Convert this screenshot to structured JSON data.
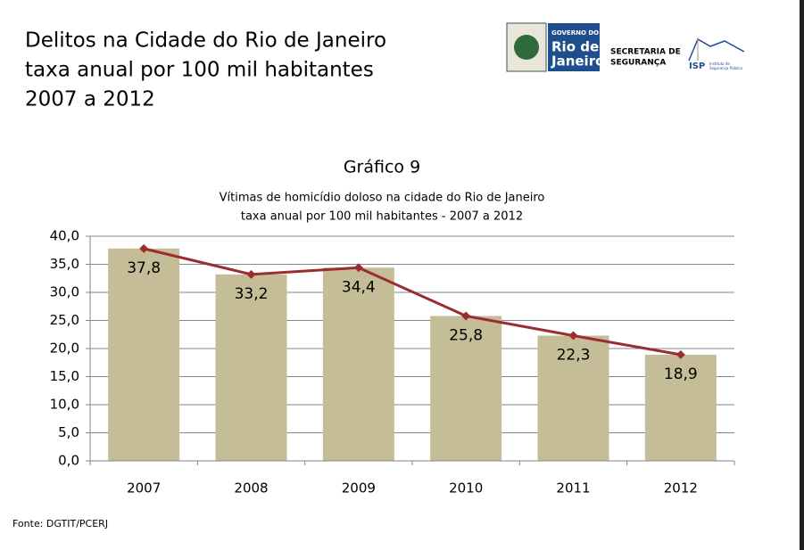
{
  "header": {
    "title_lines": [
      "Delitos na Cidade do Rio de Janeiro",
      "taxa anual por 100 mil habitantes",
      "2007 a 2012"
    ],
    "logo_gov": [
      "GOVERNO DO",
      "Rio de",
      "Janeiro"
    ],
    "logo_sec": [
      "SECRETARIA DE",
      "SEGURANÇA"
    ],
    "logo_isp": [
      "ISP",
      "Instituto de",
      "Segurança Pública"
    ]
  },
  "chart_data": {
    "type": "bar",
    "title": "Gráfico 9",
    "subtitle": [
      "Vítimas de homicídio doloso na cidade do Rio de Janeiro",
      "taxa anual por 100 mil habitantes - 2007 a 2012"
    ],
    "categories": [
      "2007",
      "2008",
      "2009",
      "2010",
      "2011",
      "2012"
    ],
    "series": [
      {
        "type": "bar",
        "color": "#c4bd97",
        "values": [
          37.8,
          33.2,
          34.4,
          25.8,
          22.3,
          18.9
        ]
      },
      {
        "type": "line",
        "color": "#9b2d30",
        "values": [
          37.8,
          33.2,
          34.4,
          25.8,
          22.3,
          18.9
        ],
        "value_labels": [
          "37,8",
          "33,2",
          "34,4",
          "25,8",
          "22,3",
          "18,9"
        ]
      }
    ],
    "ylim": [
      0,
      40
    ],
    "yticks": [
      {
        "value": 0,
        "label": "0,0"
      },
      {
        "value": 5,
        "label": "5,0"
      },
      {
        "value": 10,
        "label": "10,0"
      },
      {
        "value": 15,
        "label": "15,0"
      },
      {
        "value": 20,
        "label": "20,0"
      },
      {
        "value": 25,
        "label": "25,0"
      },
      {
        "value": 30,
        "label": "30,0"
      },
      {
        "value": 35,
        "label": "35,0"
      },
      {
        "value": 40,
        "label": "40,0"
      }
    ],
    "grid": true
  },
  "source": "Fonte: DGTIT/PCERJ"
}
